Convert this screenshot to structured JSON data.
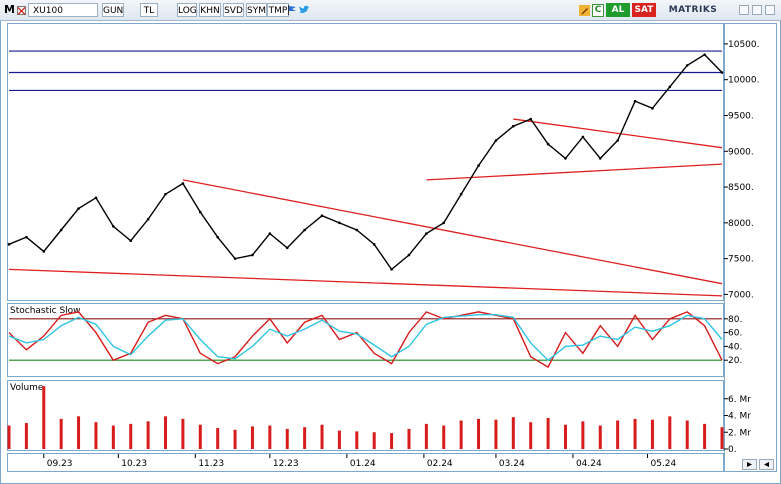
{
  "toolbar": {
    "menu_label": "M",
    "symbol": "XU100",
    "period": "GUN",
    "currency": "TL",
    "log": "LOG",
    "khn": "KHN",
    "svd": "SVD",
    "sym": "SYM",
    "tmp": "TMP",
    "c_label": "C",
    "buy_label": "AL",
    "sell_label": "SAT",
    "brand": "MATRIKS"
  },
  "colors": {
    "price_line": "#000000",
    "trendline": "#e02020",
    "horizontal_level": "#1a1a8c",
    "stoch_k": "#d81b1b",
    "stoch_d": "#2ec4e0",
    "stoch_upper": "#8b1a1a",
    "stoch_lower": "#1a8a1a",
    "volume": "#d81b1b",
    "buy": "#1e9d2e",
    "sell": "#d8231f"
  },
  "x_axis": {
    "labels": [
      "09.23",
      "10.23",
      "11.23",
      "12.23",
      "01.24",
      "02.24",
      "03.24",
      "04.24",
      "05.24"
    ]
  },
  "chart_data": [
    {
      "type": "line",
      "title": "",
      "y_ticks": [
        7000,
        7500,
        8000,
        8500,
        9000,
        9500,
        10000,
        10500
      ],
      "y_tick_labels": [
        "7000.",
        "7500.",
        "8000.",
        "8500.",
        "9000.",
        "9500.",
        "10000.",
        "10500."
      ],
      "ylim": [
        6950,
        10750
      ],
      "x_range": [
        "2023-08-18",
        "2024-05-31"
      ],
      "series": [
        {
          "points": [
            [
              "2023-08-18",
              7700
            ],
            [
              "2023-08-25",
              7800
            ],
            [
              "2023-09-01",
              7600
            ],
            [
              "2023-09-08",
              7900
            ],
            [
              "2023-09-15",
              8200
            ],
            [
              "2023-09-22",
              8350
            ],
            [
              "2023-09-29",
              7950
            ],
            [
              "2023-10-06",
              7750
            ],
            [
              "2023-10-13",
              8050
            ],
            [
              "2023-10-20",
              8400
            ],
            [
              "2023-10-27",
              8550
            ],
            [
              "2023-11-03",
              8150
            ],
            [
              "2023-11-10",
              7800
            ],
            [
              "2023-11-17",
              7500
            ],
            [
              "2023-11-24",
              7550
            ],
            [
              "2023-12-01",
              7850
            ],
            [
              "2023-12-08",
              7650
            ],
            [
              "2023-12-15",
              7900
            ],
            [
              "2023-12-22",
              8100
            ],
            [
              "2023-12-29",
              8000
            ],
            [
              "2024-01-05",
              7900
            ],
            [
              "2024-01-12",
              7700
            ],
            [
              "2024-01-19",
              7350
            ],
            [
              "2024-01-26",
              7550
            ],
            [
              "2024-02-02",
              7850
            ],
            [
              "2024-02-09",
              8000
            ],
            [
              "2024-02-16",
              8400
            ],
            [
              "2024-02-23",
              8800
            ],
            [
              "2024-03-01",
              9150
            ],
            [
              "2024-03-08",
              9350
            ],
            [
              "2024-03-15",
              9450
            ],
            [
              "2024-03-22",
              9100
            ],
            [
              "2024-03-29",
              8900
            ],
            [
              "2024-04-05",
              9200
            ],
            [
              "2024-04-12",
              8900
            ],
            [
              "2024-04-19",
              9150
            ],
            [
              "2024-04-26",
              9700
            ],
            [
              "2024-05-03",
              9600
            ],
            [
              "2024-05-10",
              9900
            ],
            [
              "2024-05-17",
              10200
            ],
            [
              "2024-05-24",
              10350
            ],
            [
              "2024-05-31",
              10100
            ]
          ]
        }
      ],
      "horizontal_levels": [
        10400,
        10100,
        9850
      ],
      "trendlines": [
        {
          "from": [
            "2023-10-27",
            8600
          ],
          "to": [
            "2024-05-31",
            7150
          ]
        },
        {
          "from": [
            "2023-08-18",
            7350
          ],
          "to": [
            "2024-05-31",
            6980
          ]
        },
        {
          "from": [
            "2024-03-08",
            9450
          ],
          "to": [
            "2024-05-31",
            9050
          ]
        },
        {
          "from": [
            "2024-02-02",
            8600
          ],
          "to": [
            "2024-05-31",
            8820
          ]
        }
      ]
    },
    {
      "type": "line",
      "title": "Stochastic Slow",
      "ylim": [
        0,
        100
      ],
      "y_ticks": [
        20,
        40,
        60,
        80
      ],
      "y_tick_labels": [
        "20.",
        "40.",
        "60.",
        "80."
      ],
      "levels": [
        80,
        20
      ],
      "x_range": [
        "2023-08-18",
        "2024-05-31"
      ],
      "series": [
        {
          "points": [
            [
              "2023-08-18",
              60
            ],
            [
              "2023-08-25",
              35
            ],
            [
              "2023-09-01",
              55
            ],
            [
              "2023-09-08",
              85
            ],
            [
              "2023-09-15",
              90
            ],
            [
              "2023-09-22",
              60
            ],
            [
              "2023-09-29",
              20
            ],
            [
              "2023-10-06",
              30
            ],
            [
              "2023-10-13",
              75
            ],
            [
              "2023-10-20",
              85
            ],
            [
              "2023-10-27",
              80
            ],
            [
              "2023-11-03",
              30
            ],
            [
              "2023-11-10",
              15
            ],
            [
              "2023-11-17",
              25
            ],
            [
              "2023-11-24",
              55
            ],
            [
              "2023-12-01",
              80
            ],
            [
              "2023-12-08",
              45
            ],
            [
              "2023-12-15",
              75
            ],
            [
              "2023-12-22",
              85
            ],
            [
              "2023-12-29",
              50
            ],
            [
              "2024-01-05",
              60
            ],
            [
              "2024-01-12",
              30
            ],
            [
              "2024-01-19",
              15
            ],
            [
              "2024-01-26",
              60
            ],
            [
              "2024-02-02",
              90
            ],
            [
              "2024-02-09",
              80
            ],
            [
              "2024-02-16",
              85
            ],
            [
              "2024-02-23",
              90
            ],
            [
              "2024-03-01",
              85
            ],
            [
              "2024-03-08",
              80
            ],
            [
              "2024-03-15",
              25
            ],
            [
              "2024-03-22",
              10
            ],
            [
              "2024-03-29",
              60
            ],
            [
              "2024-04-05",
              30
            ],
            [
              "2024-04-12",
              70
            ],
            [
              "2024-04-19",
              40
            ],
            [
              "2024-04-26",
              85
            ],
            [
              "2024-05-03",
              50
            ],
            [
              "2024-05-10",
              80
            ],
            [
              "2024-05-17",
              90
            ],
            [
              "2024-05-24",
              70
            ],
            [
              "2024-05-31",
              20
            ]
          ]
        },
        {
          "points": [
            [
              "2023-08-18",
              55
            ],
            [
              "2023-08-25",
              45
            ],
            [
              "2023-09-01",
              50
            ],
            [
              "2023-09-08",
              70
            ],
            [
              "2023-09-15",
              82
            ],
            [
              "2023-09-22",
              72
            ],
            [
              "2023-09-29",
              40
            ],
            [
              "2023-10-06",
              28
            ],
            [
              "2023-10-13",
              55
            ],
            [
              "2023-10-20",
              78
            ],
            [
              "2023-10-27",
              80
            ],
            [
              "2023-11-03",
              50
            ],
            [
              "2023-11-10",
              25
            ],
            [
              "2023-11-17",
              22
            ],
            [
              "2023-11-24",
              40
            ],
            [
              "2023-12-01",
              65
            ],
            [
              "2023-12-08",
              55
            ],
            [
              "2023-12-15",
              65
            ],
            [
              "2023-12-22",
              78
            ],
            [
              "2023-12-29",
              62
            ],
            [
              "2024-01-05",
              58
            ],
            [
              "2024-01-12",
              42
            ],
            [
              "2024-01-19",
              25
            ],
            [
              "2024-01-26",
              40
            ],
            [
              "2024-02-02",
              72
            ],
            [
              "2024-02-09",
              82
            ],
            [
              "2024-02-16",
              84
            ],
            [
              "2024-02-23",
              86
            ],
            [
              "2024-03-01",
              86
            ],
            [
              "2024-03-08",
              82
            ],
            [
              "2024-03-15",
              45
            ],
            [
              "2024-03-22",
              20
            ],
            [
              "2024-03-29",
              40
            ],
            [
              "2024-04-05",
              42
            ],
            [
              "2024-04-12",
              55
            ],
            [
              "2024-04-19",
              50
            ],
            [
              "2024-04-26",
              68
            ],
            [
              "2024-05-03",
              62
            ],
            [
              "2024-05-10",
              70
            ],
            [
              "2024-05-17",
              85
            ],
            [
              "2024-05-24",
              80
            ],
            [
              "2024-05-31",
              50
            ]
          ]
        }
      ]
    },
    {
      "type": "bar",
      "title": "Volume",
      "ylim": [
        0,
        8
      ],
      "y_ticks": [
        0,
        2,
        4,
        6
      ],
      "y_tick_labels": [
        "0.",
        "2. Mr",
        "4. Mr",
        "6. Mr"
      ],
      "x_range": [
        "2023-08-18",
        "2024-05-31"
      ],
      "series": [
        {
          "points": [
            [
              "2023-08-18",
              2.8
            ],
            [
              "2023-08-25",
              3.1
            ],
            [
              "2023-09-01",
              7.5
            ],
            [
              "2023-09-08",
              3.6
            ],
            [
              "2023-09-15",
              3.9
            ],
            [
              "2023-09-22",
              3.2
            ],
            [
              "2023-09-29",
              2.8
            ],
            [
              "2023-10-06",
              3.0
            ],
            [
              "2023-10-13",
              3.3
            ],
            [
              "2023-10-20",
              3.9
            ],
            [
              "2023-10-27",
              3.6
            ],
            [
              "2023-11-03",
              2.9
            ],
            [
              "2023-11-10",
              2.5
            ],
            [
              "2023-11-17",
              2.3
            ],
            [
              "2023-11-24",
              2.7
            ],
            [
              "2023-12-01",
              2.8
            ],
            [
              "2023-12-08",
              2.4
            ],
            [
              "2023-12-15",
              2.6
            ],
            [
              "2023-12-22",
              2.9
            ],
            [
              "2023-12-29",
              2.2
            ],
            [
              "2024-01-05",
              2.1
            ],
            [
              "2024-01-12",
              2.0
            ],
            [
              "2024-01-19",
              1.9
            ],
            [
              "2024-01-26",
              2.4
            ],
            [
              "2024-02-02",
              3.0
            ],
            [
              "2024-02-09",
              2.8
            ],
            [
              "2024-02-16",
              3.4
            ],
            [
              "2024-02-23",
              3.6
            ],
            [
              "2024-03-01",
              3.5
            ],
            [
              "2024-03-08",
              3.8
            ],
            [
              "2024-03-15",
              3.2
            ],
            [
              "2024-03-22",
              3.7
            ],
            [
              "2024-03-29",
              2.9
            ],
            [
              "2024-04-05",
              3.3
            ],
            [
              "2024-04-12",
              2.8
            ],
            [
              "2024-04-19",
              3.4
            ],
            [
              "2024-04-26",
              3.6
            ],
            [
              "2024-05-03",
              3.5
            ],
            [
              "2024-05-10",
              3.9
            ],
            [
              "2024-05-17",
              3.4
            ],
            [
              "2024-05-24",
              3.0
            ],
            [
              "2024-05-31",
              2.6
            ]
          ]
        }
      ]
    }
  ]
}
